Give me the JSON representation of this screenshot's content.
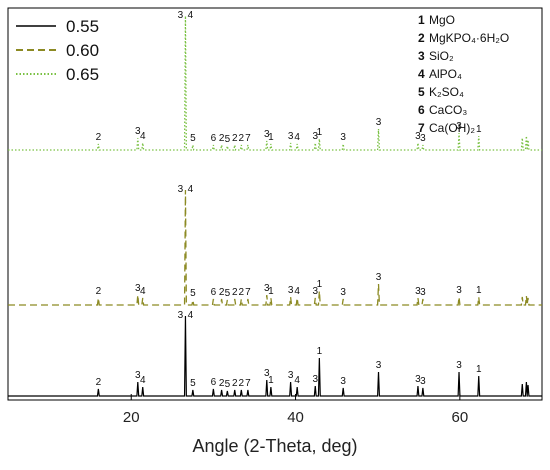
{
  "chart_data": {
    "type": "line",
    "title": "",
    "xlabel": "Angle (2-Theta, deg)",
    "ylabel": "",
    "xlim": [
      5,
      70
    ],
    "xticks": [
      20,
      40,
      60
    ],
    "legend_position": "top-left",
    "phase_legend_position": "top-right",
    "series": [
      {
        "name": "0.55",
        "color": "#000000",
        "style": "solid",
        "peaks": [
          {
            "x": 16.0,
            "h": 0.05,
            "label": "2"
          },
          {
            "x": 20.8,
            "h": 0.12,
            "label": "3"
          },
          {
            "x": 21.4,
            "h": 0.07,
            "label": "4"
          },
          {
            "x": 26.6,
            "h": 1.0,
            "label": "3 4"
          },
          {
            "x": 27.5,
            "h": 0.04,
            "label": "5"
          },
          {
            "x": 30.0,
            "h": 0.05,
            "label": "6"
          },
          {
            "x": 31.0,
            "h": 0.04,
            "label": "2"
          },
          {
            "x": 31.7,
            "h": 0.03,
            "label": "5"
          },
          {
            "x": 32.6,
            "h": 0.04,
            "label": "2"
          },
          {
            "x": 33.4,
            "h": 0.04,
            "label": "2"
          },
          {
            "x": 34.2,
            "h": 0.04,
            "label": "7"
          },
          {
            "x": 36.5,
            "h": 0.14,
            "label": "3"
          },
          {
            "x": 37.0,
            "h": 0.07,
            "label": "1"
          },
          {
            "x": 39.4,
            "h": 0.12,
            "label": "3"
          },
          {
            "x": 40.2,
            "h": 0.07,
            "label": "4"
          },
          {
            "x": 42.4,
            "h": 0.08,
            "label": "3"
          },
          {
            "x": 42.9,
            "h": 0.36,
            "label": "1"
          },
          {
            "x": 45.8,
            "h": 0.06,
            "label": "3"
          },
          {
            "x": 50.1,
            "h": 0.22,
            "label": "3"
          },
          {
            "x": 54.9,
            "h": 0.08,
            "label": "3"
          },
          {
            "x": 55.5,
            "h": 0.06,
            "label": "3"
          },
          {
            "x": 59.9,
            "h": 0.22,
            "label": "3"
          },
          {
            "x": 62.3,
            "h": 0.18,
            "label": "1"
          },
          {
            "x": 67.6,
            "h": 0.1,
            "label": ""
          },
          {
            "x": 68.1,
            "h": 0.12,
            "label": ""
          },
          {
            "x": 68.3,
            "h": 0.09,
            "label": ""
          }
        ]
      },
      {
        "name": "0.60",
        "color": "#8c8a23",
        "style": "dashed",
        "peaks": [
          {
            "x": 16.0,
            "h": 0.05,
            "label": "2"
          },
          {
            "x": 20.8,
            "h": 0.08,
            "label": "3"
          },
          {
            "x": 21.4,
            "h": 0.05,
            "label": "4"
          },
          {
            "x": 26.6,
            "h": 1.0,
            "label": "3 4"
          },
          {
            "x": 27.5,
            "h": 0.03,
            "label": "5"
          },
          {
            "x": 30.0,
            "h": 0.04,
            "label": "6"
          },
          {
            "x": 31.0,
            "h": 0.04,
            "label": "2"
          },
          {
            "x": 31.7,
            "h": 0.03,
            "label": "5"
          },
          {
            "x": 32.6,
            "h": 0.04,
            "label": "2"
          },
          {
            "x": 33.4,
            "h": 0.04,
            "label": "2"
          },
          {
            "x": 34.2,
            "h": 0.04,
            "label": "7"
          },
          {
            "x": 36.5,
            "h": 0.08,
            "label": "3"
          },
          {
            "x": 37.0,
            "h": 0.05,
            "label": "1"
          },
          {
            "x": 39.4,
            "h": 0.06,
            "label": "3"
          },
          {
            "x": 40.2,
            "h": 0.05,
            "label": "4"
          },
          {
            "x": 42.4,
            "h": 0.05,
            "label": "3"
          },
          {
            "x": 42.9,
            "h": 0.12,
            "label": "1"
          },
          {
            "x": 45.8,
            "h": 0.04,
            "label": "3"
          },
          {
            "x": 50.1,
            "h": 0.19,
            "label": "3"
          },
          {
            "x": 54.9,
            "h": 0.05,
            "label": "3"
          },
          {
            "x": 55.5,
            "h": 0.04,
            "label": "3"
          },
          {
            "x": 59.9,
            "h": 0.06,
            "label": "3"
          },
          {
            "x": 62.3,
            "h": 0.06,
            "label": "1"
          },
          {
            "x": 67.6,
            "h": 0.06,
            "label": ""
          },
          {
            "x": 68.1,
            "h": 0.07,
            "label": ""
          },
          {
            "x": 68.3,
            "h": 0.05,
            "label": ""
          }
        ]
      },
      {
        "name": "0.65",
        "color": "#7ac143",
        "style": "dotted",
        "peaks": [
          {
            "x": 16.0,
            "h": 0.04,
            "label": "2"
          },
          {
            "x": 20.8,
            "h": 0.1,
            "label": "3"
          },
          {
            "x": 21.4,
            "h": 0.05,
            "label": "4"
          },
          {
            "x": 26.6,
            "h": 1.0,
            "label": "3 4"
          },
          {
            "x": 27.5,
            "h": 0.03,
            "label": "5"
          },
          {
            "x": 30.0,
            "h": 0.03,
            "label": "6"
          },
          {
            "x": 31.0,
            "h": 0.03,
            "label": "2"
          },
          {
            "x": 31.7,
            "h": 0.02,
            "label": "5"
          },
          {
            "x": 32.6,
            "h": 0.03,
            "label": "2"
          },
          {
            "x": 33.4,
            "h": 0.03,
            "label": "2"
          },
          {
            "x": 34.2,
            "h": 0.03,
            "label": "7"
          },
          {
            "x": 36.5,
            "h": 0.07,
            "label": "3"
          },
          {
            "x": 37.0,
            "h": 0.04,
            "label": "1"
          },
          {
            "x": 39.4,
            "h": 0.05,
            "label": "3"
          },
          {
            "x": 40.2,
            "h": 0.04,
            "label": "4"
          },
          {
            "x": 42.4,
            "h": 0.05,
            "label": "3"
          },
          {
            "x": 42.9,
            "h": 0.09,
            "label": "1"
          },
          {
            "x": 45.8,
            "h": 0.04,
            "label": "3"
          },
          {
            "x": 50.1,
            "h": 0.19,
            "label": "3"
          },
          {
            "x": 54.9,
            "h": 0.05,
            "label": "3"
          },
          {
            "x": 55.5,
            "h": 0.03,
            "label": "3"
          },
          {
            "x": 59.9,
            "h": 0.15,
            "label": "3"
          },
          {
            "x": 62.3,
            "h": 0.12,
            "label": "1"
          },
          {
            "x": 67.6,
            "h": 0.1,
            "label": ""
          },
          {
            "x": 68.1,
            "h": 0.12,
            "label": ""
          },
          {
            "x": 68.3,
            "h": 0.08,
            "label": ""
          }
        ]
      }
    ],
    "phases": [
      {
        "num": "1",
        "name": "MgO"
      },
      {
        "num": "2",
        "name": "MgKPO₄·6H₂O"
      },
      {
        "num": "3",
        "name": "SiO₂"
      },
      {
        "num": "4",
        "name": "AlPO₄"
      },
      {
        "num": "5",
        "name": "K₂SO₄"
      },
      {
        "num": "6",
        "name": "CaCO₃"
      },
      {
        "num": "7",
        "name": "Ca(OH)₂"
      }
    ]
  }
}
